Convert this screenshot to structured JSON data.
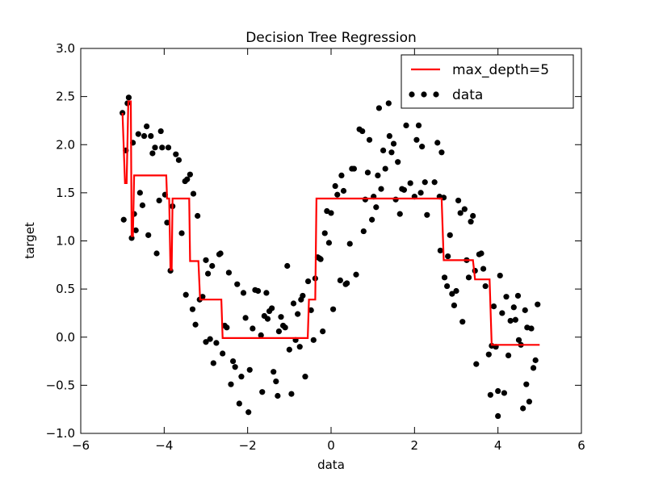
{
  "chart_data": {
    "type": "scatter",
    "title": "Decision Tree Regression",
    "xlabel": "data",
    "ylabel": "target",
    "xlim": [
      -6,
      6
    ],
    "ylim": [
      -1.0,
      3.0
    ],
    "xticks": [
      -6,
      -4,
      -2,
      0,
      2,
      4,
      6
    ],
    "xtick_labels": [
      "−6",
      "−4",
      "−2",
      "0",
      "2",
      "4",
      "6"
    ],
    "yticks": [
      -1.0,
      -0.5,
      0.0,
      0.5,
      1.0,
      1.5,
      2.0,
      2.5,
      3.0
    ],
    "ytick_labels": [
      "−1.0",
      "−0.5",
      "0.0",
      "0.5",
      "1.0",
      "1.5",
      "2.0",
      "2.5",
      "3.0"
    ],
    "grid": false,
    "legend_position": "top-right",
    "colors": {
      "line": "#ff0000",
      "points": "#000000"
    },
    "series": [
      {
        "name": "max_depth=5",
        "kind": "line",
        "x": [
          -5.0,
          -4.94,
          -4.9,
          -4.86,
          -4.82,
          -4.8,
          -4.78,
          -4.75,
          -4.72,
          -4.7,
          -3.95,
          -3.93,
          -3.9,
          -3.88,
          -3.85,
          -3.82,
          -3.8,
          -3.4,
          -3.38,
          -3.32,
          -3.3,
          -3.18,
          -3.14,
          -3.1,
          -3.08,
          -2.63,
          -2.6,
          -0.56,
          -0.53,
          -0.45,
          -0.42,
          -0.38,
          -0.35,
          2.65,
          2.7,
          3.4,
          3.45,
          3.75,
          3.8,
          3.85,
          5.0
        ],
        "y": [
          2.33,
          1.6,
          1.6,
          2.45,
          2.45,
          2.45,
          1.05,
          1.05,
          1.68,
          1.68,
          1.68,
          1.44,
          1.44,
          1.44,
          0.7,
          0.7,
          1.44,
          1.44,
          0.79,
          0.79,
          0.79,
          0.79,
          0.39,
          0.39,
          0.39,
          0.39,
          -0.01,
          -0.01,
          0.39,
          0.39,
          0.39,
          0.39,
          1.44,
          1.44,
          0.8,
          0.8,
          0.6,
          0.6,
          0.6,
          -0.08,
          -0.08
        ]
      },
      {
        "name": "data",
        "kind": "scatter",
        "points": [
          [
            -5.0,
            2.33
          ],
          [
            -4.97,
            1.22
          ],
          [
            -4.92,
            1.94
          ],
          [
            -4.88,
            2.43
          ],
          [
            -4.85,
            2.49
          ],
          [
            -4.78,
            1.03
          ],
          [
            -4.75,
            2.02
          ],
          [
            -4.72,
            1.28
          ],
          [
            -4.68,
            1.11
          ],
          [
            -4.62,
            2.11
          ],
          [
            -4.58,
            1.5
          ],
          [
            -4.52,
            1.37
          ],
          [
            -4.48,
            2.09
          ],
          [
            -4.42,
            2.19
          ],
          [
            -4.38,
            1.06
          ],
          [
            -4.32,
            2.09
          ],
          [
            -4.28,
            1.91
          ],
          [
            -4.22,
            1.97
          ],
          [
            -4.18,
            0.87
          ],
          [
            -4.12,
            1.42
          ],
          [
            -4.08,
            2.14
          ],
          [
            -4.05,
            1.97
          ],
          [
            -3.98,
            1.48
          ],
          [
            -3.93,
            1.19
          ],
          [
            -3.9,
            1.97
          ],
          [
            -3.85,
            0.69
          ],
          [
            -3.8,
            1.36
          ],
          [
            -3.72,
            1.9
          ],
          [
            -3.65,
            1.84
          ],
          [
            -3.58,
            1.08
          ],
          [
            -3.5,
            1.62
          ],
          [
            -3.48,
            0.44
          ],
          [
            -3.45,
            1.64
          ],
          [
            -3.38,
            1.69
          ],
          [
            -3.32,
            0.29
          ],
          [
            -3.3,
            1.49
          ],
          [
            -3.25,
            0.13
          ],
          [
            -3.2,
            1.26
          ],
          [
            -3.15,
            0.39
          ],
          [
            -3.08,
            0.42
          ],
          [
            -3.0,
            -0.05
          ],
          [
            -3.0,
            0.8
          ],
          [
            -2.95,
            0.66
          ],
          [
            -2.9,
            -0.02
          ],
          [
            -2.85,
            0.74
          ],
          [
            -2.82,
            -0.27
          ],
          [
            -2.75,
            -0.06
          ],
          [
            -2.68,
            0.86
          ],
          [
            -2.65,
            0.87
          ],
          [
            -2.6,
            -0.17
          ],
          [
            -2.55,
            0.12
          ],
          [
            -2.5,
            0.1
          ],
          [
            -2.45,
            0.67
          ],
          [
            -2.4,
            -0.49
          ],
          [
            -2.35,
            -0.25
          ],
          [
            -2.3,
            -0.31
          ],
          [
            -2.25,
            0.55
          ],
          [
            -2.2,
            -0.69
          ],
          [
            -2.15,
            -0.41
          ],
          [
            -2.1,
            0.46
          ],
          [
            -2.05,
            0.2
          ],
          [
            -1.98,
            -0.78
          ],
          [
            -1.95,
            -0.34
          ],
          [
            -1.88,
            0.09
          ],
          [
            -1.82,
            0.49
          ],
          [
            -1.75,
            0.48
          ],
          [
            -1.68,
            0.02
          ],
          [
            -1.65,
            -0.57
          ],
          [
            -1.6,
            0.22
          ],
          [
            -1.55,
            0.46
          ],
          [
            -1.52,
            0.19
          ],
          [
            -1.48,
            0.27
          ],
          [
            -1.42,
            0.3
          ],
          [
            -1.38,
            -0.36
          ],
          [
            -1.32,
            -0.46
          ],
          [
            -1.28,
            -0.61
          ],
          [
            -1.25,
            0.06
          ],
          [
            -1.2,
            0.21
          ],
          [
            -1.15,
            0.12
          ],
          [
            -1.1,
            0.1
          ],
          [
            -1.05,
            0.74
          ],
          [
            -1.0,
            -0.13
          ],
          [
            -0.95,
            -0.59
          ],
          [
            -0.9,
            0.35
          ],
          [
            -0.85,
            -0.03
          ],
          [
            -0.8,
            0.24
          ],
          [
            -0.75,
            -0.1
          ],
          [
            -0.72,
            0.39
          ],
          [
            -0.68,
            0.43
          ],
          [
            -0.62,
            -0.41
          ],
          [
            -0.55,
            0.58
          ],
          [
            -0.48,
            0.28
          ],
          [
            -0.42,
            -0.03
          ],
          [
            -0.38,
            0.61
          ],
          [
            -0.32,
            0.83
          ],
          [
            -0.28,
            0.82
          ],
          [
            -0.25,
            0.81
          ],
          [
            -0.2,
            0.06
          ],
          [
            -0.15,
            1.08
          ],
          [
            -0.1,
            1.31
          ],
          [
            -0.05,
            0.98
          ],
          [
            0.0,
            1.29
          ],
          [
            0.05,
            0.29
          ],
          [
            0.1,
            1.57
          ],
          [
            0.15,
            1.48
          ],
          [
            0.22,
            0.59
          ],
          [
            0.25,
            1.68
          ],
          [
            0.3,
            1.52
          ],
          [
            0.35,
            0.55
          ],
          [
            0.38,
            0.56
          ],
          [
            0.45,
            0.97
          ],
          [
            0.5,
            1.75
          ],
          [
            0.55,
            1.75
          ],
          [
            0.6,
            0.65
          ],
          [
            0.68,
            2.16
          ],
          [
            0.75,
            2.14
          ],
          [
            0.78,
            1.1
          ],
          [
            0.82,
            1.43
          ],
          [
            0.88,
            1.71
          ],
          [
            0.92,
            2.05
          ],
          [
            0.98,
            1.22
          ],
          [
            1.02,
            1.46
          ],
          [
            1.08,
            1.35
          ],
          [
            1.12,
            1.68
          ],
          [
            1.15,
            2.38
          ],
          [
            1.2,
            1.54
          ],
          [
            1.25,
            1.94
          ],
          [
            1.3,
            1.75
          ],
          [
            1.38,
            2.43
          ],
          [
            1.4,
            2.09
          ],
          [
            1.45,
            1.92
          ],
          [
            1.5,
            2.01
          ],
          [
            1.55,
            1.43
          ],
          [
            1.6,
            1.82
          ],
          [
            1.65,
            1.28
          ],
          [
            1.7,
            1.54
          ],
          [
            1.75,
            1.53
          ],
          [
            1.8,
            2.2
          ],
          [
            1.85,
            2.52
          ],
          [
            1.9,
            1.6
          ],
          [
            1.95,
            2.42
          ],
          [
            2.0,
            1.46
          ],
          [
            2.05,
            2.05
          ],
          [
            2.1,
            2.2
          ],
          [
            2.15,
            1.5
          ],
          [
            2.18,
            1.98
          ],
          [
            2.25,
            1.61
          ],
          [
            2.3,
            1.27
          ],
          [
            2.35,
            2.53
          ],
          [
            2.42,
            2.52
          ],
          [
            2.48,
            1.61
          ],
          [
            2.55,
            2.02
          ],
          [
            2.6,
            1.46
          ],
          [
            2.62,
            0.9
          ],
          [
            2.65,
            1.92
          ],
          [
            2.7,
            1.45
          ],
          [
            2.72,
            0.62
          ],
          [
            2.78,
            0.53
          ],
          [
            2.8,
            0.84
          ],
          [
            2.85,
            1.06
          ],
          [
            2.9,
            0.45
          ],
          [
            2.95,
            0.33
          ],
          [
            3.0,
            0.48
          ],
          [
            3.05,
            1.42
          ],
          [
            3.1,
            1.29
          ],
          [
            3.15,
            0.16
          ],
          [
            3.2,
            1.33
          ],
          [
            3.25,
            0.8
          ],
          [
            3.3,
            0.62
          ],
          [
            3.35,
            1.2
          ],
          [
            3.4,
            1.26
          ],
          [
            3.45,
            0.69
          ],
          [
            3.48,
            -0.28
          ],
          [
            3.55,
            0.86
          ],
          [
            3.6,
            0.87
          ],
          [
            3.65,
            0.71
          ],
          [
            3.7,
            0.53
          ],
          [
            3.78,
            -0.18
          ],
          [
            3.82,
            -0.6
          ],
          [
            3.85,
            -0.09
          ],
          [
            3.9,
            0.32
          ],
          [
            3.95,
            -0.1
          ],
          [
            4.0,
            -0.56
          ],
          [
            4.05,
            0.64
          ],
          [
            4.1,
            0.25
          ],
          [
            4.15,
            -0.58
          ],
          [
            4.2,
            0.42
          ],
          [
            4.25,
            -0.19
          ],
          [
            4.3,
            0.17
          ],
          [
            4.38,
            0.31
          ],
          [
            4.42,
            0.18
          ],
          [
            4.48,
            0.43
          ],
          [
            4.5,
            -0.03
          ],
          [
            4.55,
            -0.08
          ],
          [
            4.6,
            -0.74
          ],
          [
            4.65,
            0.28
          ],
          [
            4.7,
            0.1
          ],
          [
            4.75,
            -0.67
          ],
          [
            4.8,
            0.09
          ],
          [
            4.85,
            -0.32
          ],
          [
            4.9,
            -0.24
          ],
          [
            4.95,
            0.34
          ],
          [
            4.0,
            -0.82
          ],
          [
            4.68,
            -0.49
          ]
        ]
      }
    ]
  }
}
